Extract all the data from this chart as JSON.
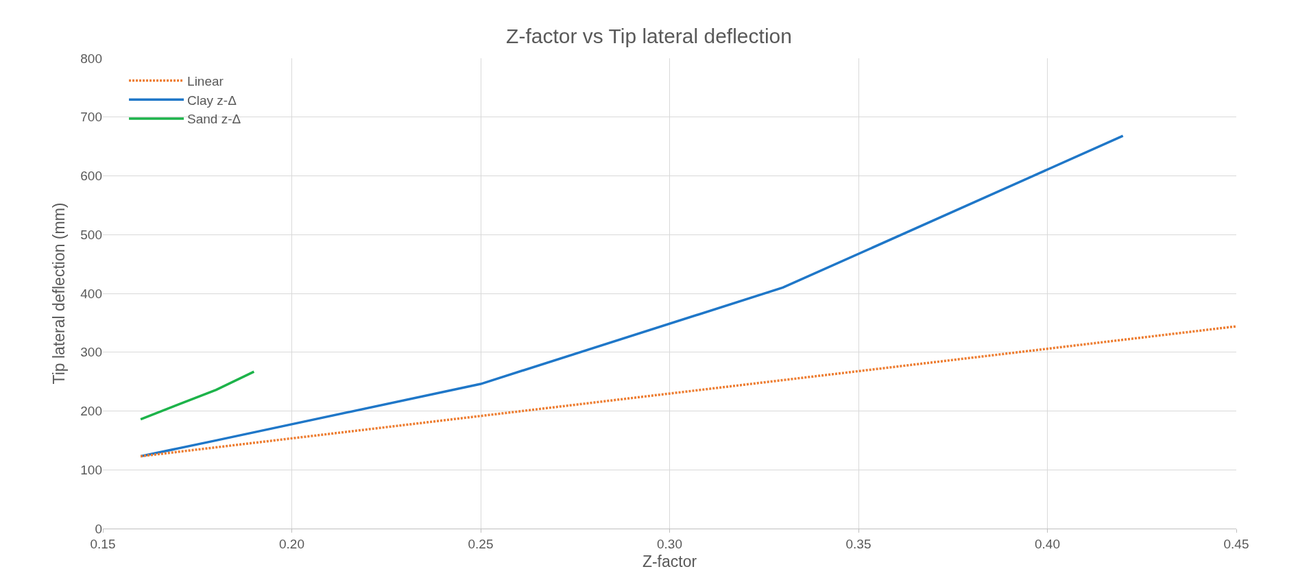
{
  "chart_data": {
    "type": "line",
    "title": "Z-factor vs Tip lateral deflection",
    "xlabel": "Z-factor",
    "ylabel": "Tip lateral deflection (mm)",
    "series": [
      {
        "name": "Linear",
        "color": "#ed7d31",
        "line_style": "dotted",
        "x": [
          0.16,
          0.45
        ],
        "values": [
          123,
          344
        ]
      },
      {
        "name": "Clay z-Δ",
        "color": "#1f77c8",
        "line_style": "solid",
        "x": [
          0.16,
          0.18,
          0.25,
          0.33,
          0.42
        ],
        "values": [
          123,
          150,
          246,
          410,
          668
        ]
      },
      {
        "name": "Sand z-Δ",
        "color": "#1db34a",
        "line_style": "solid",
        "x": [
          0.16,
          0.18,
          0.19
        ],
        "values": [
          186,
          236,
          267
        ]
      }
    ],
    "xlim": [
      0.15,
      0.45
    ],
    "xticks": [
      {
        "value": 0.15,
        "label": "0.15"
      },
      {
        "value": 0.2,
        "label": "0.20"
      },
      {
        "value": 0.25,
        "label": "0.25"
      },
      {
        "value": 0.3,
        "label": "0.30"
      },
      {
        "value": 0.35,
        "label": "0.35"
      },
      {
        "value": 0.4,
        "label": "0.40"
      },
      {
        "value": 0.45,
        "label": "0.45"
      }
    ],
    "ylim": [
      0,
      800
    ],
    "yticks": [
      0,
      100,
      200,
      300,
      400,
      500,
      600,
      700,
      800
    ],
    "grid": true,
    "legend": "top left",
    "marker": "none"
  }
}
